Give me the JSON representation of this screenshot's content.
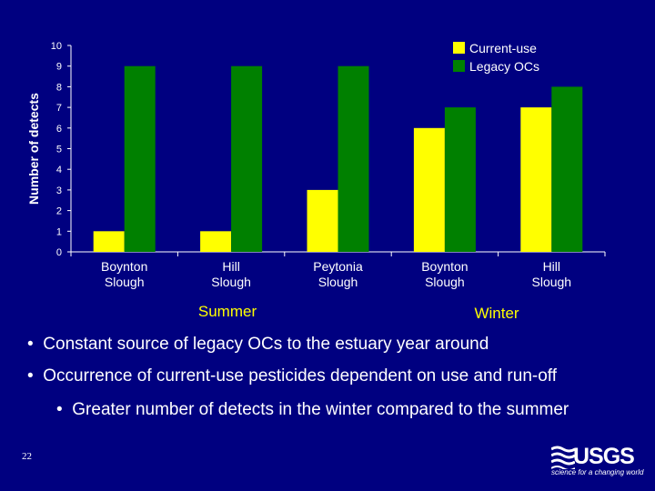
{
  "chart_data": {
    "type": "bar",
    "ylabel": "Number of detects",
    "ylim": [
      0,
      10
    ],
    "yticks": [
      0,
      1,
      2,
      3,
      4,
      5,
      6,
      7,
      8,
      9,
      10
    ],
    "categories": [
      [
        "Boynton",
        "Slough"
      ],
      [
        "Hill",
        "Slough"
      ],
      [
        "Peytonia",
        "Slough"
      ],
      [
        "Boynton",
        "Slough"
      ],
      [
        "Hill",
        "Slough"
      ]
    ],
    "groups": [
      {
        "label": "Summer",
        "categories": [
          0,
          1,
          2
        ]
      },
      {
        "label": "Winter",
        "categories": [
          3,
          4
        ]
      }
    ],
    "series": [
      {
        "name": "Current-use",
        "color": "#ffff00",
        "values": [
          1,
          1,
          3,
          6,
          7
        ]
      },
      {
        "name": "Legacy OCs",
        "color": "#008000",
        "values": [
          9,
          9,
          9,
          7,
          8
        ]
      }
    ],
    "legend_position": "top-right",
    "grid": false
  },
  "bullets": [
    "Constant source of legacy OCs to the estuary year around",
    "Occurrence of current-use pesticides dependent on use and run-off",
    "Greater number of detects in the winter compared to the summer"
  ],
  "bullet_marker": "•",
  "slide_number": "22",
  "logo": {
    "word": "USGS",
    "tagline": "science for a changing world"
  }
}
